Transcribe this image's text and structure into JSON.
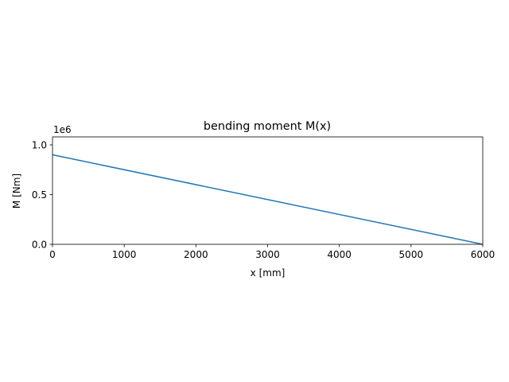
{
  "chart_data": {
    "type": "line",
    "title": "bending moment M(x)",
    "xlabel": "x [mm]",
    "ylabel": "M [Nm]",
    "y_offset_label": "1e6",
    "xlim": [
      0,
      6000
    ],
    "ylim": [
      0,
      1.08
    ],
    "y_scale_factor": 1000000,
    "x_ticks": [
      0,
      1000,
      2000,
      3000,
      4000,
      5000,
      6000
    ],
    "x_tick_labels": [
      "0",
      "1000",
      "2000",
      "3000",
      "4000",
      "5000",
      "6000"
    ],
    "y_ticks": [
      0,
      0.5,
      1.0
    ],
    "y_tick_labels": [
      "0.0",
      "0.5",
      "1.0"
    ],
    "grid": false,
    "series": [
      {
        "color": "#1f77b4",
        "x": [
          0,
          6000
        ],
        "y": [
          0.9,
          0.0
        ]
      }
    ]
  }
}
